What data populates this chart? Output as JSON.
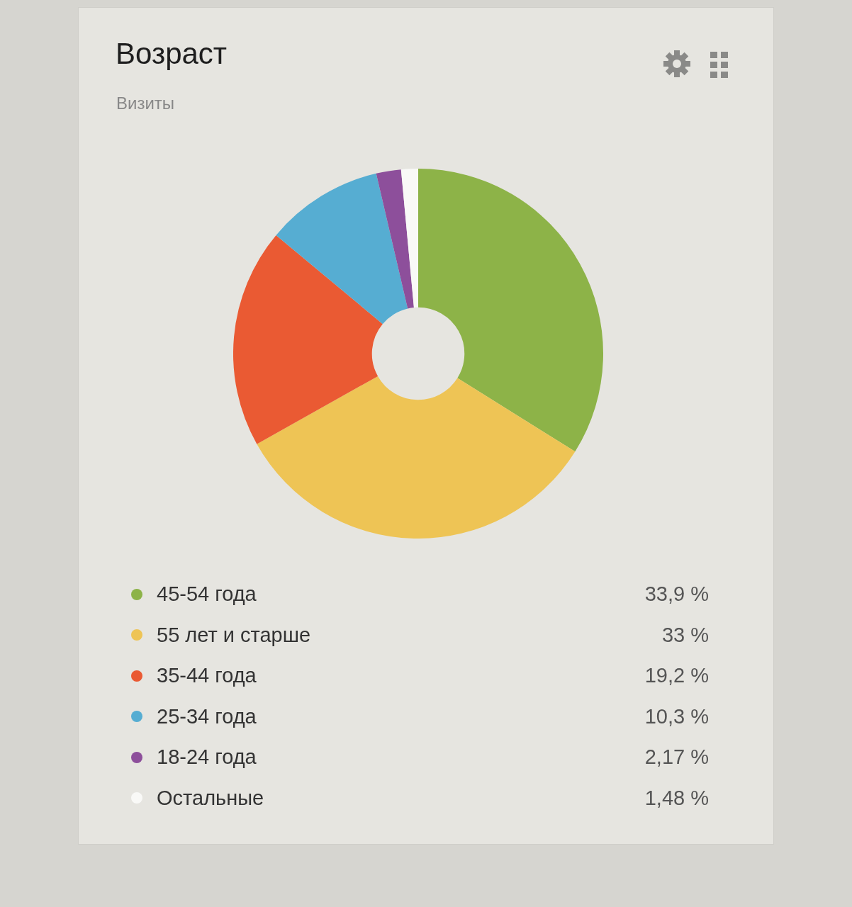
{
  "chart_data": {
    "type": "donut",
    "title": "Возраст",
    "subtitle": "Визиты",
    "categories": [
      "45-54 года",
      "55 лет и старше",
      "35-44 года",
      "25-34 года",
      "18-24 года",
      "Остальные"
    ],
    "values": [
      33.9,
      33,
      19.2,
      10.3,
      2.17,
      1.48
    ],
    "value_labels": [
      "33,9 %",
      "33 %",
      "19,2 %",
      "10,3 %",
      "2,17 %",
      "1,48 %"
    ],
    "colors": [
      "#8db348",
      "#eec455",
      "#ea5a33",
      "#56add2",
      "#8d4f9b",
      "#f9f9f7"
    ],
    "legend": "bottom"
  }
}
